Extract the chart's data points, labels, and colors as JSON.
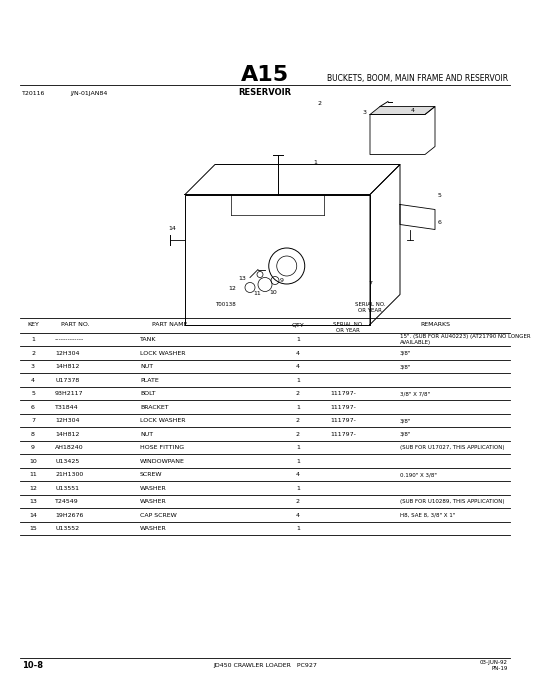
{
  "page_title": "A15",
  "section_title": "BUCKETS, BOOM, MAIN FRAME AND RESERVOIR",
  "sub_title": "RESERVOIR",
  "left_header": "T20116",
  "left_header2": "J/N-01JAN84",
  "bg_color": "#ffffff",
  "parts": [
    {
      "key": "1",
      "part": "-------------",
      "name": "TANK",
      "qty": "1",
      "serial": "",
      "remarks": "15\". (SUB FOR AU40223) (AT21790 NO LONGER\nAVAILABLE)"
    },
    {
      "key": "2",
      "part": "12H304",
      "name": "LOCK WASHER",
      "qty": "4",
      "serial": "",
      "remarks": "3/8\""
    },
    {
      "key": "3",
      "part": "14H812",
      "name": "NUT",
      "qty": "4",
      "serial": "",
      "remarks": "3/8\""
    },
    {
      "key": "4",
      "part": "U17378",
      "name": "PLATE",
      "qty": "1",
      "serial": "",
      "remarks": ""
    },
    {
      "key": "5",
      "part": "93H2117",
      "name": "BOLT",
      "qty": "2",
      "serial": "111797-",
      "remarks": "3/8\" X 7/8\""
    },
    {
      "key": "6",
      "part": "T31844",
      "name": "BRACKET",
      "qty": "1",
      "serial": "111797-",
      "remarks": ""
    },
    {
      "key": "7",
      "part": "12H304",
      "name": "LOCK WASHER",
      "qty": "2",
      "serial": "111797-",
      "remarks": "3/8\""
    },
    {
      "key": "8",
      "part": "14H812",
      "name": "NUT",
      "qty": "2",
      "serial": "111797-",
      "remarks": "3/8\""
    },
    {
      "key": "9",
      "part": "AH18240",
      "name": "HOSE FITTING",
      "qty": "1",
      "serial": "",
      "remarks": "(SUB FOR U17027, THIS APPLICATION)"
    },
    {
      "key": "10",
      "part": "U13425",
      "name": "WINDOWPANE",
      "qty": "1",
      "serial": "",
      "remarks": ""
    },
    {
      "key": "11",
      "part": "21H1300",
      "name": "SCREW",
      "qty": "4",
      "serial": "",
      "remarks": "0.190\" X 3/8\""
    },
    {
      "key": "12",
      "part": "U13551",
      "name": "WASHER",
      "qty": "1",
      "serial": "",
      "remarks": ""
    },
    {
      "key": "13",
      "part": "T24549",
      "name": "WASHER",
      "qty": "2",
      "serial": "",
      "remarks": "(SUB FOR U10289, THIS APPLICATION)"
    },
    {
      "key": "14",
      "part": "19H2676",
      "name": "CAP SCREW",
      "qty": "4",
      "serial": "",
      "remarks": "H8, SAE 8, 3/8\" X 1\""
    },
    {
      "key": "15",
      "part": "U13552",
      "name": "WASHER",
      "qty": "1",
      "serial": "",
      "remarks": ""
    }
  ],
  "footer_left": "10-8",
  "footer_center": "JD450 CRAWLER LOADER   PC927",
  "footer_right": "03-JUN-92",
  "footer_right2": "PN-19"
}
